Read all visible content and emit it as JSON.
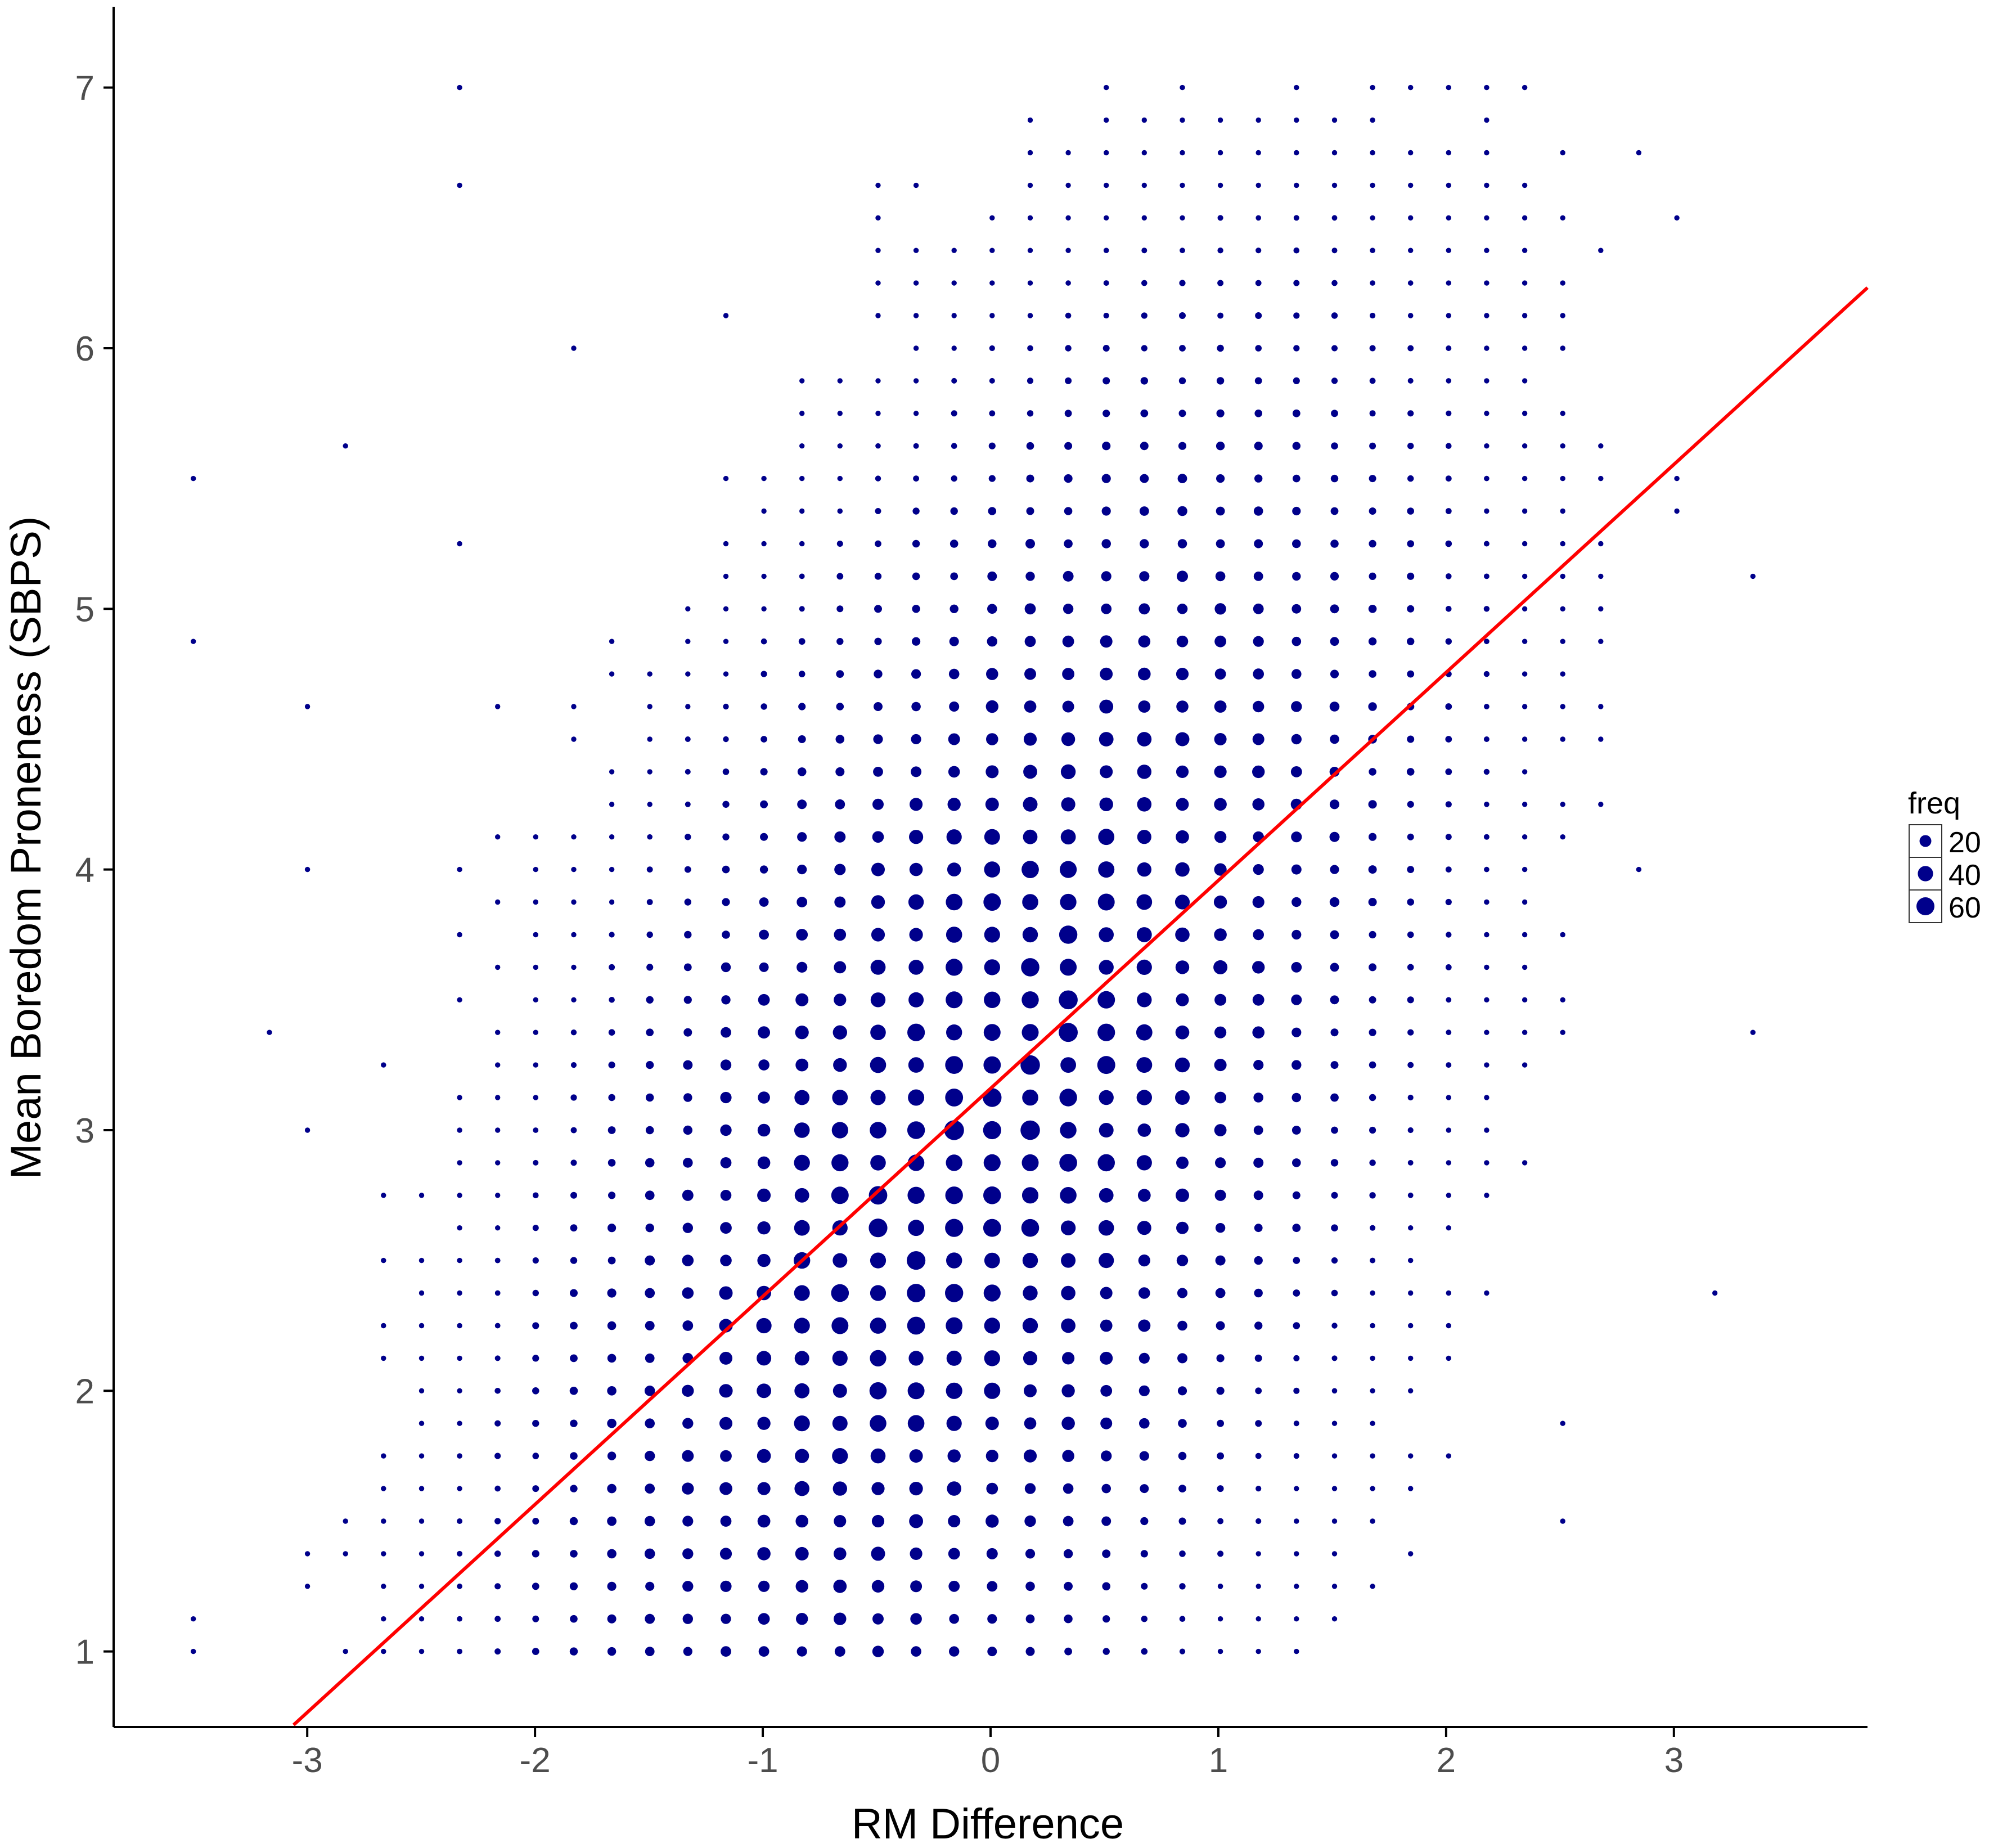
{
  "chart_data": {
    "type": "scatter",
    "xlabel": "RM Difference",
    "ylabel": "Mean Boredom Proneness (SBPS)",
    "xlim": [
      -3.85,
      3.85
    ],
    "ylim": [
      0.71,
      7.31
    ],
    "x_ticks": [
      -3,
      -2,
      -1,
      0,
      1,
      2,
      3
    ],
    "y_ticks": [
      1,
      2,
      3,
      4,
      5,
      6,
      7
    ],
    "grid": false,
    "point_color": "#00008B",
    "line_color": "#FF0000",
    "fit_line": {
      "slope": 0.798,
      "intercept": 3.16,
      "x_range": [
        -3.06,
        3.85
      ]
    },
    "legend": {
      "title": "freq",
      "placement": "right",
      "sizes": [
        20,
        40,
        60
      ]
    },
    "x_grid_step": 0.167,
    "y_grid_step": 0.125,
    "frequency_model": {
      "description": "Binned (x, y) counts; point area grows with freq",
      "x_center": -0.05,
      "y_center": 3.0,
      "x_sd": 0.82,
      "y_sd": 1.25,
      "correlation": 0.52,
      "peak_freq": 62
    }
  }
}
